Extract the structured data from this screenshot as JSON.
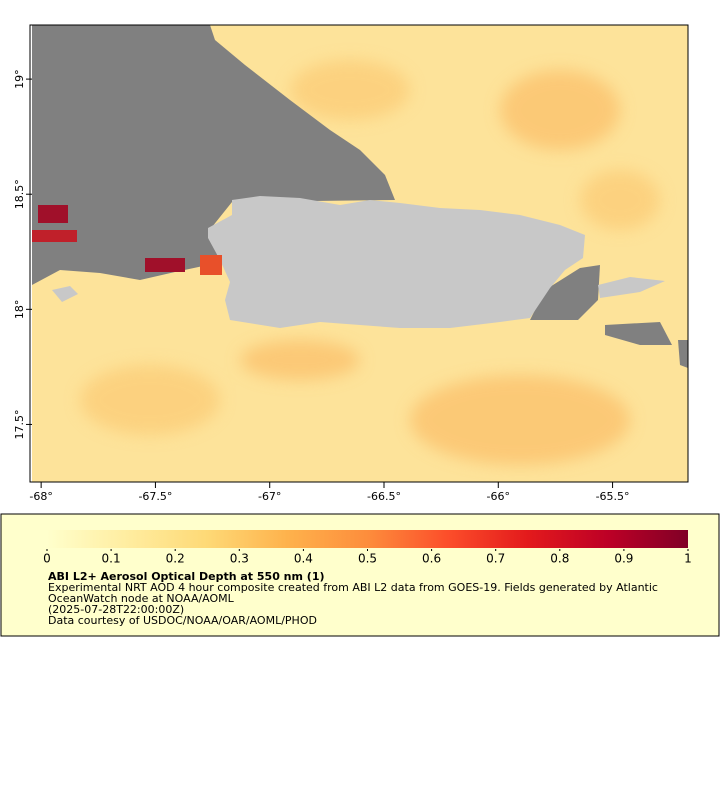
{
  "chart_data": {
    "type": "map",
    "xlim": [
      -68.04,
      -65.17
    ],
    "ylim": [
      17.25,
      19.235
    ],
    "xticks": [
      {
        "value": -68,
        "label": "-68°"
      },
      {
        "value": -67.5,
        "label": "-67.5°"
      },
      {
        "value": -67,
        "label": "-67°"
      },
      {
        "value": -66.5,
        "label": "-66.5°"
      },
      {
        "value": -66,
        "label": "-66°"
      },
      {
        "value": -65.5,
        "label": "-65.5°"
      }
    ],
    "yticks": [
      {
        "value": 17.5,
        "label": "17.5°"
      },
      {
        "value": 18,
        "label": "18°"
      },
      {
        "value": 18.5,
        "label": "18.5°"
      },
      {
        "value": 19,
        "label": "19°"
      }
    ],
    "colorbar": {
      "clim": [
        0,
        1
      ],
      "ticks": [
        0,
        0.1,
        0.2,
        0.3,
        0.4,
        0.5,
        0.6,
        0.7,
        0.8,
        0.9,
        1
      ],
      "colors": [
        "#ffffcc",
        "#ffeda0",
        "#fed976",
        "#feb24c",
        "#fd8d3c",
        "#fc4e2a",
        "#e31a1c",
        "#bd0026",
        "#800026"
      ]
    },
    "title": "ABI L2+ Aerosol Optical Depth at 550 nm (1)",
    "notes": [
      "Experimental NRT AOD 4 hour composite created from ABI L2 data from GOES-19. Fields generated by Atlantic",
      "OceanWatch node at NOAA/AOML",
      "(2025-07-28T22:00:00Z)",
      "Data courtesy of USDOC/NOAA/OAR/AOML/PHOD"
    ]
  }
}
